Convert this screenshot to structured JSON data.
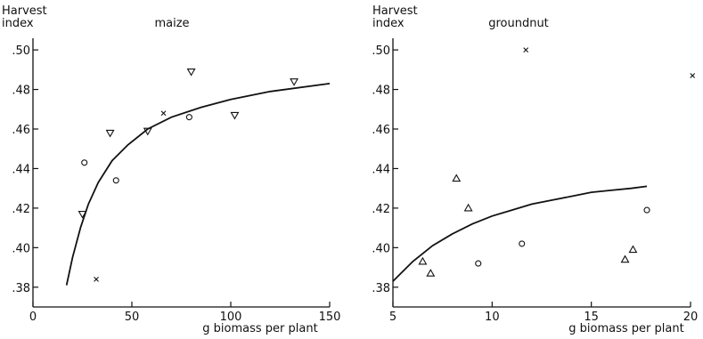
{
  "chart_data": [
    {
      "type": "scatter",
      "title": "maize",
      "ylabel_lines": [
        "Harvest",
        "index"
      ],
      "xlabel": "g biomass per plant",
      "xlim": [
        0,
        150
      ],
      "ylim": [
        0.37,
        0.505
      ],
      "x_ticks": [
        0,
        50,
        100,
        150
      ],
      "x_tick_labels": [
        "0",
        "50",
        "100",
        "150"
      ],
      "y_ticks": [
        0.38,
        0.4,
        0.42,
        0.44,
        0.46,
        0.48,
        0.5
      ],
      "y_tick_labels": [
        ".38",
        ".40",
        ".42",
        ".44",
        ".46",
        ".48",
        ".50"
      ],
      "series": [
        {
          "marker": "triangle-down",
          "points": [
            [
              25,
              0.417
            ],
            [
              39,
              0.458
            ],
            [
              58,
              0.459
            ],
            [
              80,
              0.489
            ],
            [
              102,
              0.467
            ],
            [
              132,
              0.484
            ]
          ]
        },
        {
          "marker": "circle",
          "points": [
            [
              26,
              0.443
            ],
            [
              42,
              0.434
            ],
            [
              79,
              0.466
            ]
          ]
        },
        {
          "marker": "cross",
          "points": [
            [
              32,
              0.384
            ],
            [
              66,
              0.468
            ]
          ]
        }
      ],
      "fit_curve": {
        "x": [
          17,
          20,
          24,
          28,
          33,
          40,
          48,
          58,
          70,
          85,
          100,
          120,
          150
        ],
        "y": [
          0.381,
          0.395,
          0.41,
          0.422,
          0.433,
          0.444,
          0.452,
          0.46,
          0.466,
          0.471,
          0.475,
          0.479,
          0.483
        ]
      }
    },
    {
      "type": "scatter",
      "title": "groundnut",
      "ylabel_lines": [
        "Harvest",
        "index"
      ],
      "xlabel": "g biomass per plant",
      "xlim": [
        5,
        20
      ],
      "ylim": [
        0.37,
        0.505
      ],
      "x_ticks": [
        5,
        10,
        15,
        20
      ],
      "x_tick_labels": [
        "5",
        "10",
        "15",
        "20"
      ],
      "y_ticks": [
        0.38,
        0.4,
        0.42,
        0.44,
        0.46,
        0.48,
        0.5
      ],
      "y_tick_labels": [
        ".38",
        ".40",
        ".42",
        ".44",
        ".46",
        ".48",
        ".50"
      ],
      "series": [
        {
          "marker": "triangle-up",
          "points": [
            [
              6.5,
              0.393
            ],
            [
              6.9,
              0.387
            ],
            [
              8.2,
              0.435
            ],
            [
              8.8,
              0.42
            ],
            [
              16.7,
              0.394
            ],
            [
              17.1,
              0.399
            ]
          ]
        },
        {
          "marker": "circle",
          "points": [
            [
              9.3,
              0.392
            ],
            [
              11.5,
              0.402
            ],
            [
              17.8,
              0.419
            ]
          ]
        },
        {
          "marker": "cross",
          "points": [
            [
              11.7,
              0.5
            ],
            [
              20.1,
              0.487
            ]
          ]
        }
      ],
      "fit_curve": {
        "x": [
          5,
          6,
          7,
          8,
          9,
          10,
          11,
          12,
          13,
          14,
          15,
          16,
          17,
          17.8
        ],
        "y": [
          0.383,
          0.393,
          0.401,
          0.407,
          0.412,
          0.416,
          0.419,
          0.422,
          0.424,
          0.426,
          0.428,
          0.429,
          0.43,
          0.431
        ]
      }
    }
  ]
}
